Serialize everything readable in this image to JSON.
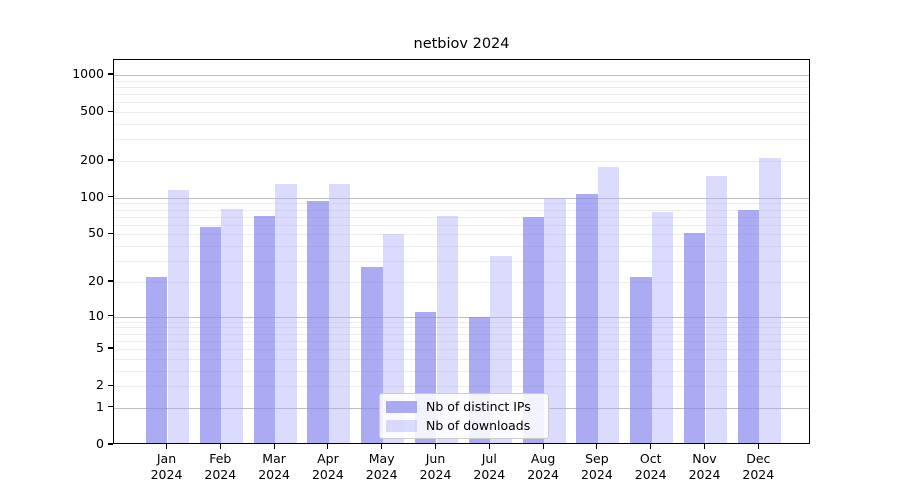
{
  "title": "netbiov 2024",
  "chart_data": {
    "type": "bar",
    "title": "netbiov 2024",
    "categories": [
      "Jan",
      "Feb",
      "Mar",
      "Apr",
      "May",
      "Jun",
      "Jul",
      "Aug",
      "Sep",
      "Oct",
      "Nov",
      "Dec"
    ],
    "category_year": "2024",
    "series": [
      {
        "name": "Nb of distinct IPs",
        "values": [
          22,
          58,
          71,
          95,
          27,
          11,
          10,
          70,
          108,
          22,
          51,
          80
        ]
      },
      {
        "name": "Nb of downloads",
        "values": [
          117,
          81,
          130,
          131,
          50,
          71,
          33,
          100,
          180,
          77,
          150,
          210
        ]
      }
    ],
    "xlabel": "",
    "ylabel": "",
    "yscale": "log1p",
    "yticks": [
      0,
      1,
      2,
      5,
      10,
      20,
      50,
      100,
      200,
      500,
      1000
    ],
    "ylim": [
      0,
      1325
    ],
    "grid": "on",
    "legend_position": "lower center",
    "colors": {
      "distinct_ips_bar": "rgba(136,136,240,0.70)",
      "downloads_bar": "rgba(170,170,250,0.42)",
      "gridline_major": "#bfbfbf",
      "gridline_minor": "#ececec",
      "axis_frame": "#000000",
      "text": "#000000"
    }
  }
}
